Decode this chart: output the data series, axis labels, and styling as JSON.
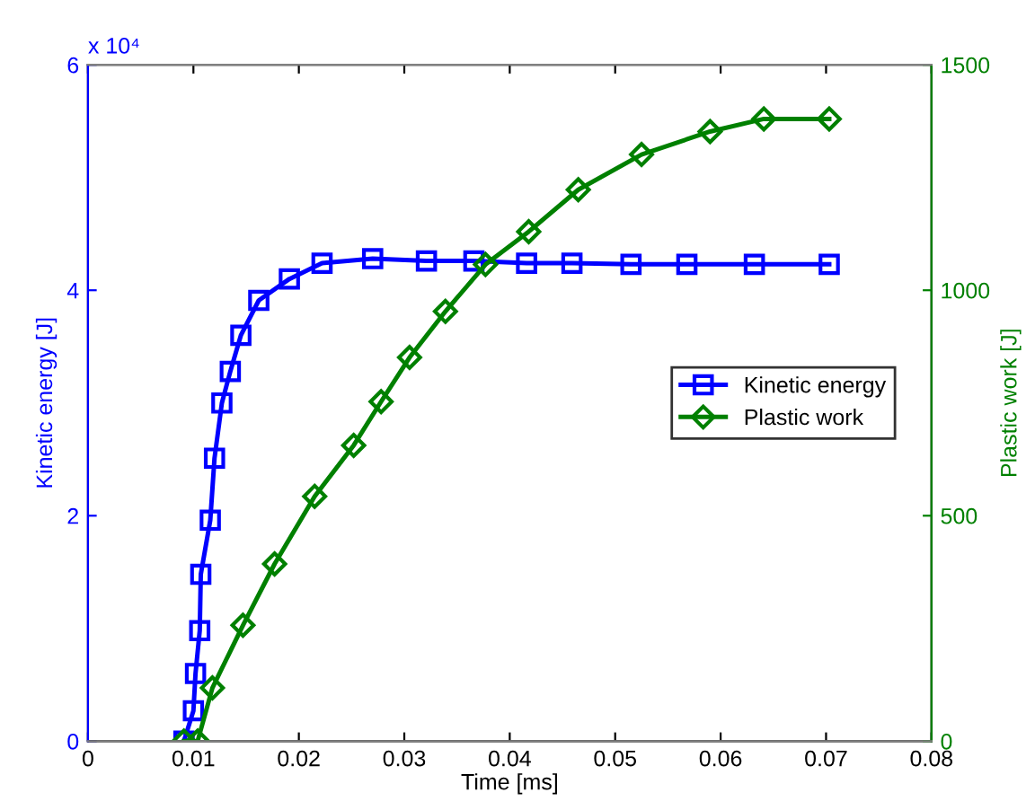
{
  "chart_data": {
    "type": "line",
    "xlabel": "Time [ms]",
    "ylabel": "Kinetic energy [J]",
    "y2label": "Plastic work [J]",
    "annotations": [
      "x 10⁴"
    ],
    "series": [
      {
        "name": "Kinetic energy",
        "color": "#0000ff",
        "marker": "square",
        "x": [
          0.0091,
          0.01,
          0.0102,
          0.0106,
          0.0107,
          0.0116,
          0.012,
          0.0127,
          0.0135,
          0.0145,
          0.0162,
          0.0191,
          0.0222,
          0.027,
          0.0321,
          0.0366,
          0.0416,
          0.0459,
          0.0515,
          0.0568,
          0.0632,
          0.0703
        ],
        "values": [
          0,
          0.27,
          0.6,
          0.98,
          1.48,
          1.96,
          2.51,
          3.0,
          3.28,
          3.6,
          3.91,
          4.1,
          4.24,
          4.28,
          4.26,
          4.26,
          4.24,
          4.24,
          4.23,
          4.23,
          4.23,
          4.23
        ]
      },
      {
        "name": "Plastic work",
        "color": "#008000",
        "marker": "diamond",
        "axis": "y2",
        "x": [
          0.0091,
          0.0104,
          0.0118,
          0.0147,
          0.0177,
          0.0215,
          0.0252,
          0.0278,
          0.0305,
          0.0339,
          0.0377,
          0.0418,
          0.0465,
          0.0525,
          0.059,
          0.0641,
          0.0703
        ],
        "values": [
          0,
          0,
          118,
          257,
          393,
          543,
          656,
          753,
          851,
          953,
          1057,
          1130,
          1223,
          1301,
          1352,
          1380,
          1380
        ]
      }
    ],
    "xlim": [
      0,
      0.08
    ],
    "xticks": [
      0,
      0.01,
      0.02,
      0.03,
      0.04,
      0.05,
      0.06,
      0.07,
      0.08
    ],
    "ylim": [
      0,
      6
    ],
    "yticks": [
      0,
      2,
      4,
      6
    ],
    "y2lim": [
      0,
      1500
    ],
    "y2ticks": [
      0,
      500,
      1000,
      1500
    ],
    "legend": "right",
    "grid": false,
    "line_style": "solid"
  }
}
